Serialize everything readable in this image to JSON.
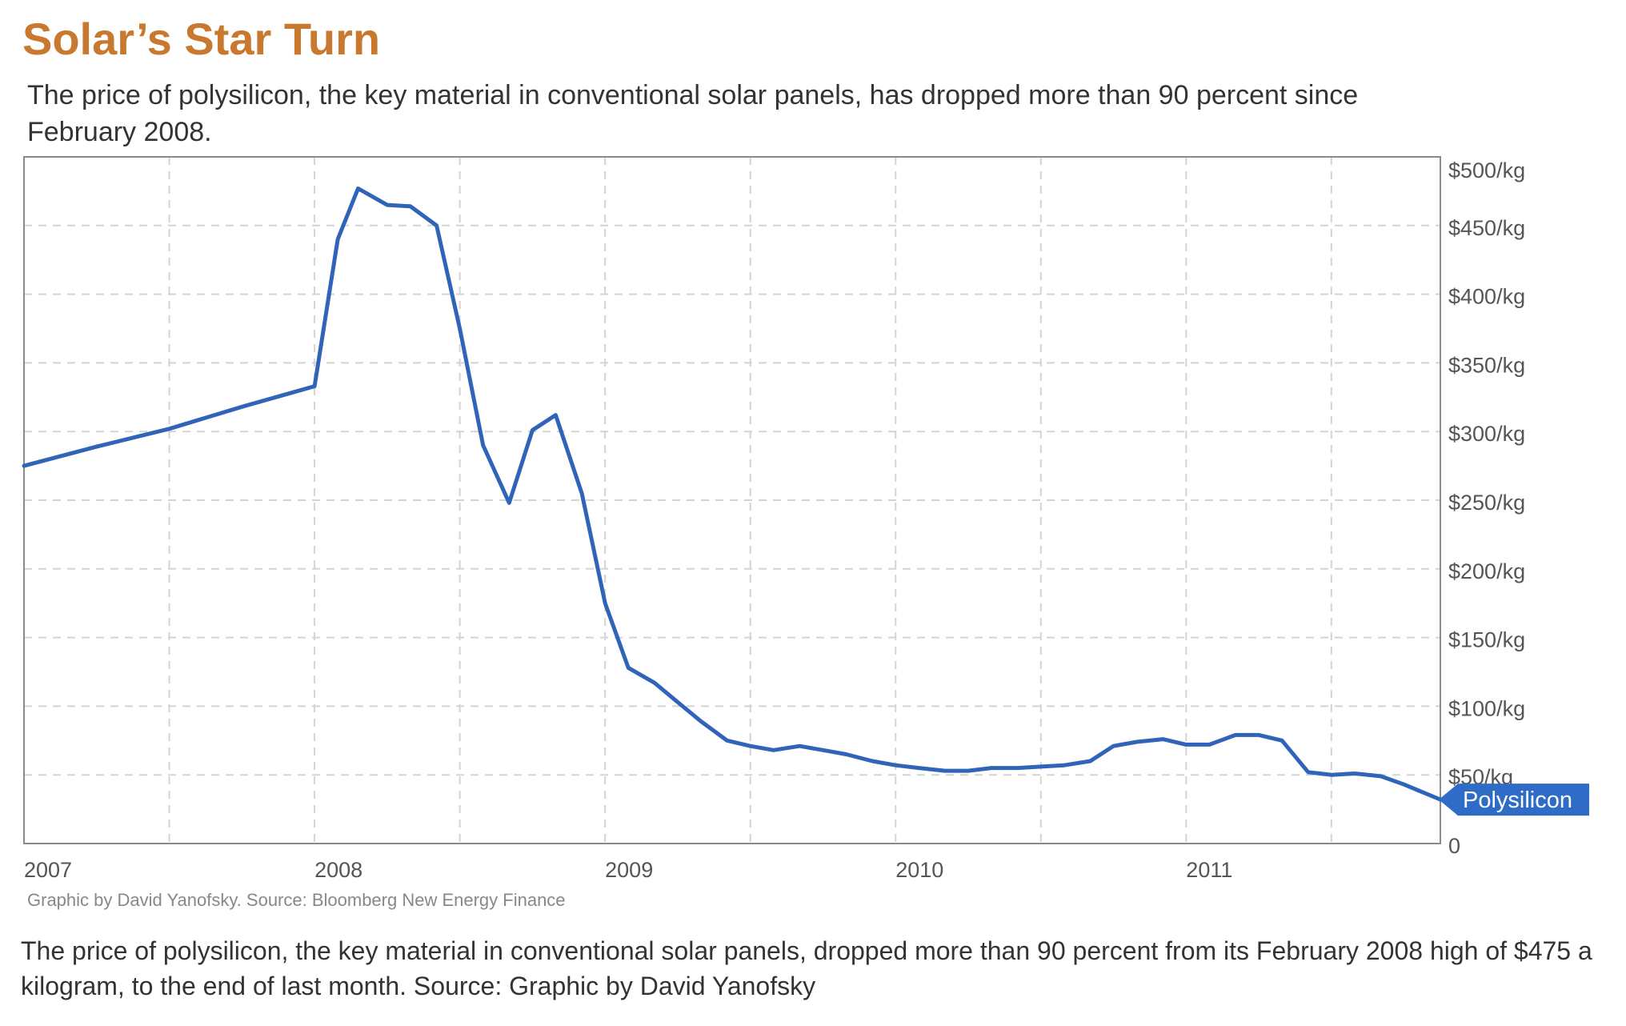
{
  "title": "Solar’s Star Turn",
  "subtitle": "The price of polysilicon, the key material in conventional solar panels, has dropped more than 90 percent since February 2008.",
  "source_note": "Graphic by David Yanofsky. Source: Bloomberg New Energy Finance",
  "caption": "The price of polysilicon, the key material in conventional solar panels, dropped more than 90 percent from its February 2008 high of $475 a kilogram, to the end of last month. Source: Graphic by David Yanofsky",
  "colors": {
    "title": "#c8782f",
    "line": "#2f64b9",
    "tag": "#2f6cc8",
    "grid": "#d4d4d4",
    "frame": "#8a8a8a"
  },
  "chart_data": {
    "type": "line",
    "title": "Solar’s Star Turn",
    "xlabel": "",
    "ylabel": "",
    "x_tick_labels": [
      "2007",
      "2008",
      "2009",
      "2010",
      "2011"
    ],
    "y_tick_labels": [
      "0",
      "$50/kg",
      "$100/kg",
      "$150/kg",
      "$200/kg",
      "$250/kg",
      "$300/kg",
      "$350/kg",
      "$400/kg",
      "$450/kg",
      "$500/kg"
    ],
    "xlim": [
      2007.0,
      2011.875
    ],
    "ylim": [
      0,
      500
    ],
    "y_axis_side": "right",
    "grid": true,
    "series_tag": "Polysilicon",
    "series": [
      {
        "name": "Polysilicon",
        "x": [
          2007.0,
          2007.25,
          2007.5,
          2007.75,
          2008.0,
          2008.08,
          2008.15,
          2008.25,
          2008.33,
          2008.42,
          2008.5,
          2008.58,
          2008.67,
          2008.75,
          2008.83,
          2008.92,
          2009.0,
          2009.08,
          2009.17,
          2009.25,
          2009.33,
          2009.42,
          2009.5,
          2009.58,
          2009.67,
          2009.75,
          2009.83,
          2009.92,
          2010.0,
          2010.08,
          2010.17,
          2010.25,
          2010.33,
          2010.42,
          2010.5,
          2010.58,
          2010.67,
          2010.75,
          2010.83,
          2010.92,
          2011.0,
          2011.08,
          2011.17,
          2011.25,
          2011.33,
          2011.42,
          2011.5,
          2011.58,
          2011.67,
          2011.75,
          2011.875
        ],
        "y": [
          275,
          289,
          302,
          318,
          333,
          440,
          477,
          465,
          464,
          450,
          375,
          290,
          248,
          301,
          312,
          255,
          175,
          128,
          117,
          103,
          89,
          75,
          71,
          68,
          71,
          68,
          65,
          60,
          57,
          55,
          53,
          53,
          55,
          55,
          56,
          57,
          60,
          71,
          74,
          76,
          72,
          72,
          79,
          79,
          75,
          52,
          50,
          51,
          49,
          43,
          32
        ]
      }
    ]
  }
}
